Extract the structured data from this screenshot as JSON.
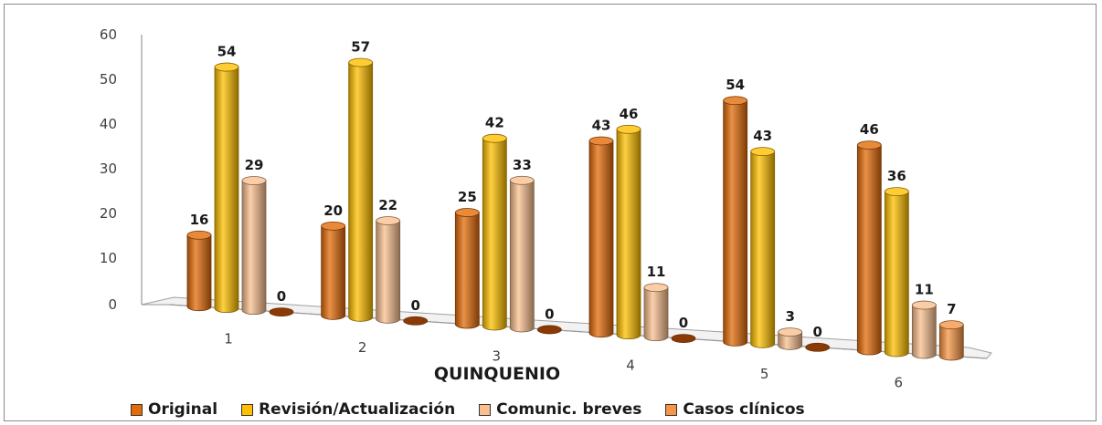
{
  "chart_data": {
    "type": "bar",
    "style": "3d-cylinder",
    "categories": [
      "1",
      "2",
      "3",
      "4",
      "5",
      "6"
    ],
    "series": [
      {
        "name": "Original",
        "values": [
          16,
          20,
          25,
          43,
          54,
          46
        ],
        "color": "#E36C09"
      },
      {
        "name": "Revisión/Actualización",
        "values": [
          54,
          57,
          42,
          46,
          43,
          36
        ],
        "color": "#FFC000"
      },
      {
        "name": "Comunic. breves",
        "values": [
          29,
          22,
          33,
          11,
          3,
          11
        ],
        "color": "#FAC090"
      },
      {
        "name": "Casos clínicos",
        "values": [
          0,
          0,
          0,
          0,
          0,
          7
        ],
        "color": "#F79646"
      }
    ],
    "xlabel": "QUINQUENIO",
    "ylabel": "",
    "ylim": [
      0,
      60
    ],
    "yticks": [
      0,
      10,
      20,
      30,
      40,
      50,
      60
    ],
    "legend_position": "bottom",
    "grid": false
  }
}
